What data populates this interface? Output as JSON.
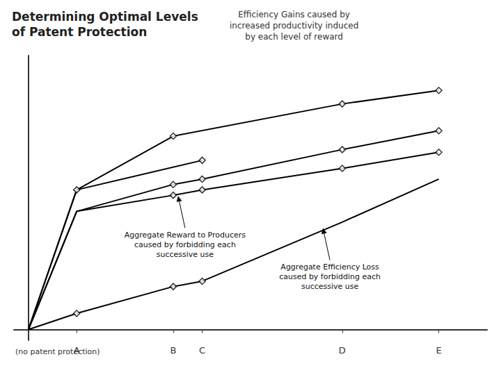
{
  "chart_data": {
    "type": "line",
    "title": "Determining Optimal Levels\nof Patent Protection",
    "subtitle": "Efficiency Gains caused by\nincreased productivity induced\nby each level of reward",
    "xlabel": "(no patent protection)",
    "color": "#000000",
    "marker": "diamond",
    "grid": false,
    "tick_labels": "x",
    "xlim": [
      -0.3,
      9.5
    ],
    "ylim": [
      -0.04,
      1.02
    ],
    "xticks": [
      {
        "value": 1.0,
        "label": "A"
      },
      {
        "value": 3.0,
        "label": "B"
      },
      {
        "value": 3.6,
        "label": "C"
      },
      {
        "value": 6.5,
        "label": "D"
      },
      {
        "value": 8.5,
        "label": "E"
      }
    ],
    "yticks": [],
    "series": [
      {
        "x": [
          0.0,
          1.0,
          3.0,
          6.5,
          8.5
        ],
        "values": [
          0.0,
          0.52,
          0.72,
          0.84,
          0.89
        ],
        "markers": [
          [
            3.0,
            0.72
          ],
          [
            6.5,
            0.84
          ],
          [
            8.5,
            0.89
          ]
        ]
      },
      {
        "x": [
          0.0,
          1.0,
          3.6
        ],
        "values": [
          0.0,
          0.52,
          0.63
        ],
        "markers": [
          [
            1.0,
            0.52
          ],
          [
            3.6,
            0.63
          ]
        ]
      },
      {
        "x": [
          0.0,
          1.0,
          3.0,
          3.6,
          6.5,
          8.5
        ],
        "values": [
          0.0,
          0.44,
          0.54,
          0.56,
          0.67,
          0.74
        ],
        "markers": [
          [
            3.0,
            0.54
          ],
          [
            3.6,
            0.56
          ],
          [
            6.5,
            0.67
          ],
          [
            8.5,
            0.74
          ]
        ]
      },
      {
        "x": [
          0.0,
          1.0,
          3.0,
          3.6,
          6.5,
          8.5
        ],
        "values": [
          0.0,
          0.44,
          0.5,
          0.52,
          0.6,
          0.66
        ],
        "markers": [
          [
            3.0,
            0.5
          ],
          [
            3.6,
            0.52
          ],
          [
            6.5,
            0.6
          ],
          [
            8.5,
            0.66
          ]
        ]
      },
      {
        "x": [
          0.0,
          1.0,
          3.0,
          3.6,
          6.5,
          8.5
        ],
        "values": [
          0.0,
          0.06,
          0.16,
          0.18,
          0.4,
          0.56
        ],
        "markers": [
          [
            1.0,
            0.06
          ],
          [
            3.0,
            0.16
          ],
          [
            3.6,
            0.18
          ]
        ]
      }
    ],
    "annotations": [
      {
        "text": "Aggregate Reward to Producers\ncaused by forbidding each\nsuccessive use",
        "x": 3.1,
        "y": 0.505
      },
      {
        "text": "Aggregate Efficiency Loss\ncaused by forbidding each\nsuccessive use",
        "x": 6.1,
        "y": 0.385
      }
    ]
  }
}
